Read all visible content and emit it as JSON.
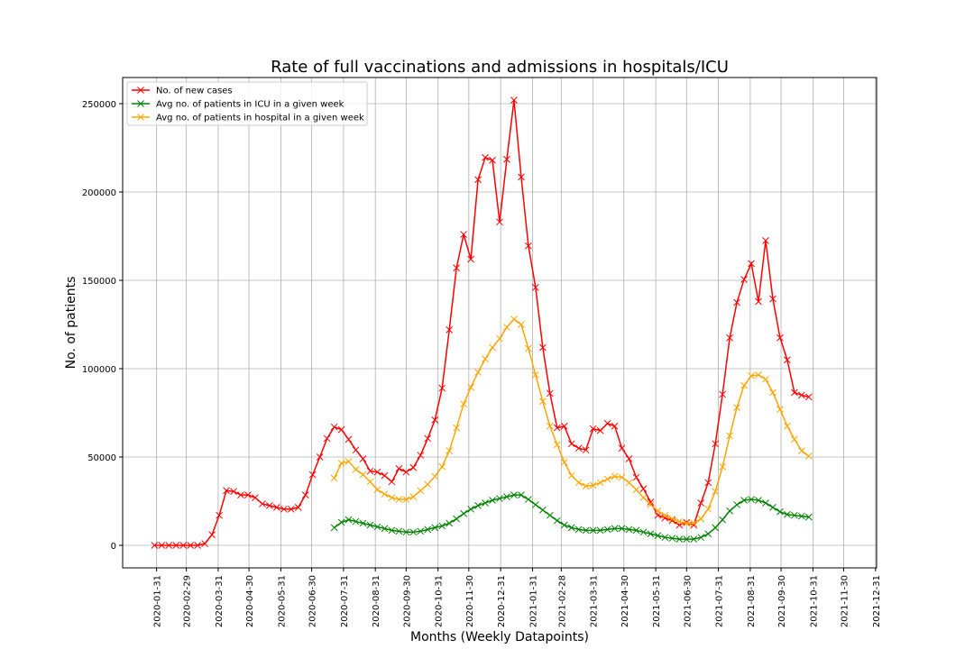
{
  "chart_data": {
    "type": "line",
    "title": "Rate of full vaccinations and admissions in hospitals/ICU",
    "xlabel": "Months (Weekly Datapoints)",
    "ylabel": "No. of patients",
    "x": [
      "2020-01-29",
      "2020-02-05",
      "2020-02-12",
      "2020-02-19",
      "2020-02-26",
      "2020-03-04",
      "2020-03-11",
      "2020-03-18",
      "2020-03-25",
      "2020-04-01",
      "2020-04-08",
      "2020-04-15",
      "2020-04-22",
      "2020-04-29",
      "2020-05-06",
      "2020-05-13",
      "2020-05-20",
      "2020-05-27",
      "2020-06-03",
      "2020-06-10",
      "2020-06-17",
      "2020-06-24",
      "2020-07-01",
      "2020-07-08",
      "2020-07-15",
      "2020-07-22",
      "2020-07-29",
      "2020-08-05",
      "2020-08-12",
      "2020-08-19",
      "2020-08-26",
      "2020-09-02",
      "2020-09-09",
      "2020-09-16",
      "2020-09-23",
      "2020-09-30",
      "2020-10-07",
      "2020-10-14",
      "2020-10-21",
      "2020-10-28",
      "2020-11-04",
      "2020-11-11",
      "2020-11-18",
      "2020-11-25",
      "2020-12-02",
      "2020-12-09",
      "2020-12-16",
      "2020-12-23",
      "2020-12-30",
      "2021-01-06",
      "2021-01-13",
      "2021-01-20",
      "2021-01-27",
      "2021-02-03",
      "2021-02-10",
      "2021-02-17",
      "2021-02-24",
      "2021-03-03",
      "2021-03-10",
      "2021-03-17",
      "2021-03-24",
      "2021-03-31",
      "2021-04-07",
      "2021-04-14",
      "2021-04-21",
      "2021-04-28",
      "2021-05-05",
      "2021-05-12",
      "2021-05-19",
      "2021-05-26",
      "2021-06-02",
      "2021-06-09",
      "2021-06-16",
      "2021-06-23",
      "2021-06-30",
      "2021-07-07",
      "2021-07-14",
      "2021-07-21",
      "2021-07-28",
      "2021-08-04",
      "2021-08-11",
      "2021-08-18",
      "2021-08-25",
      "2021-09-01",
      "2021-09-08",
      "2021-09-15",
      "2021-09-22",
      "2021-09-29",
      "2021-10-06",
      "2021-10-13",
      "2021-10-20",
      "2021-10-27"
    ],
    "series": [
      {
        "name": "No. of new cases",
        "color": "red",
        "values": [
          0,
          0,
          0,
          0,
          0,
          0,
          0,
          1000,
          6000,
          17000,
          31000,
          30500,
          28500,
          28500,
          27000,
          23500,
          22500,
          21500,
          20500,
          20500,
          21500,
          28500,
          40000,
          50000,
          60500,
          67000,
          65500,
          60000,
          54000,
          49000,
          42000,
          41500,
          39500,
          36000,
          43500,
          41500,
          44000,
          51000,
          60500,
          71000,
          89000,
          122000,
          157000,
          176000,
          162000,
          207000,
          219500,
          218000,
          183000,
          218500,
          252000,
          208500,
          169500,
          146000,
          112000,
          86000,
          66500,
          67500,
          57500,
          55000,
          54000,
          66000,
          65000,
          69000,
          67500,
          55000,
          49000,
          38500,
          32000,
          24500,
          17000,
          15500,
          14000,
          11500,
          13000,
          11500,
          24000,
          35500,
          57500,
          85500,
          117500,
          137500,
          150500,
          159500,
          138000,
          172500,
          139500,
          117500,
          105000,
          86500,
          85000,
          84000
        ]
      },
      {
        "name": "Avg no. of patients in ICU in a given week",
        "color": "green",
        "values": [
          null,
          null,
          null,
          null,
          null,
          null,
          null,
          null,
          null,
          null,
          null,
          null,
          null,
          null,
          null,
          null,
          null,
          null,
          null,
          null,
          null,
          null,
          null,
          null,
          null,
          10000,
          13000,
          14500,
          13500,
          12500,
          11500,
          10500,
          9500,
          8500,
          8000,
          7500,
          7500,
          8000,
          9000,
          10000,
          11000,
          12500,
          15000,
          18000,
          20500,
          22500,
          24000,
          25500,
          26500,
          27500,
          28500,
          28500,
          26000,
          23000,
          20000,
          17000,
          14000,
          11500,
          10000,
          9000,
          8500,
          8500,
          8500,
          9000,
          9500,
          9500,
          9000,
          8500,
          7500,
          6500,
          5500,
          4500,
          4000,
          3500,
          3500,
          3500,
          4500,
          6500,
          10000,
          14500,
          19500,
          23000,
          25500,
          26000,
          25500,
          24000,
          21500,
          19000,
          17500,
          17000,
          16500,
          16000
        ]
      },
      {
        "name": "Avg no. of patients in hospital in a given week",
        "color": "orange",
        "values": [
          null,
          null,
          null,
          null,
          null,
          null,
          null,
          null,
          null,
          null,
          null,
          null,
          null,
          null,
          null,
          null,
          null,
          null,
          null,
          null,
          null,
          null,
          null,
          null,
          null,
          38000,
          46500,
          47500,
          43000,
          40000,
          36000,
          31500,
          29000,
          27000,
          26000,
          26000,
          27500,
          31000,
          34500,
          39000,
          44500,
          53500,
          66500,
          80000,
          89500,
          98000,
          105500,
          112000,
          117000,
          123500,
          128000,
          125000,
          111500,
          96500,
          81500,
          67500,
          57000,
          47000,
          39500,
          35500,
          33500,
          34000,
          35500,
          37500,
          39000,
          38500,
          35500,
          31500,
          27000,
          23000,
          19500,
          17000,
          15000,
          13500,
          12500,
          12500,
          15000,
          20500,
          30500,
          44500,
          62000,
          78000,
          90500,
          96000,
          96500,
          94000,
          86500,
          77000,
          67500,
          60000,
          53500,
          50500
        ]
      }
    ],
    "xlim": [
      "2019-12-29",
      "2022-01-01"
    ],
    "xticks": [
      "2020-01-31",
      "2020-02-29",
      "2020-03-31",
      "2020-04-30",
      "2020-05-31",
      "2020-06-30",
      "2020-07-31",
      "2020-08-31",
      "2020-09-30",
      "2020-10-31",
      "2020-11-30",
      "2020-12-31",
      "2021-01-31",
      "2021-02-28",
      "2021-03-31",
      "2021-04-30",
      "2021-05-31",
      "2021-06-30",
      "2021-07-31",
      "2021-08-31",
      "2021-09-30",
      "2021-10-31",
      "2021-11-30",
      "2021-12-31"
    ],
    "ylim": [
      -12750,
      264800
    ],
    "yticks": [
      0,
      50000,
      100000,
      150000,
      200000,
      250000
    ],
    "grid": true,
    "legend": "upper left",
    "marker": "x"
  }
}
